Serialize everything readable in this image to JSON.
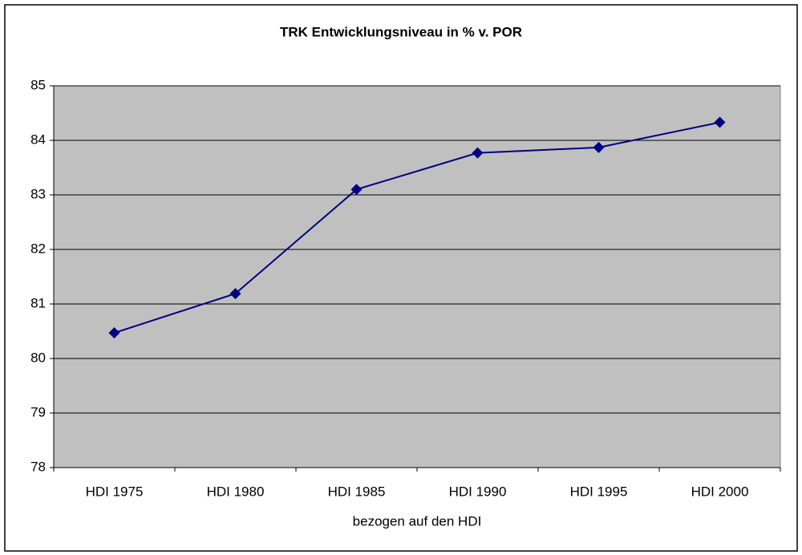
{
  "chart_data": {
    "type": "line",
    "title": "TRK Entwicklungsniveau in % v. POR",
    "x_label": "bezogen auf den HDI",
    "categories": [
      "HDI 1975",
      "HDI 1980",
      "HDI 1985",
      "HDI 1990",
      "HDI 1995",
      "HDI 2000"
    ],
    "series": [
      {
        "color": "#000080",
        "values": [
          80.47,
          81.19,
          83.1,
          83.77,
          83.87,
          84.33
        ]
      }
    ],
    "ylim": [
      78,
      85
    ],
    "yticks": [
      78,
      79,
      80,
      81,
      82,
      83,
      84,
      85
    ],
    "grid": true
  }
}
